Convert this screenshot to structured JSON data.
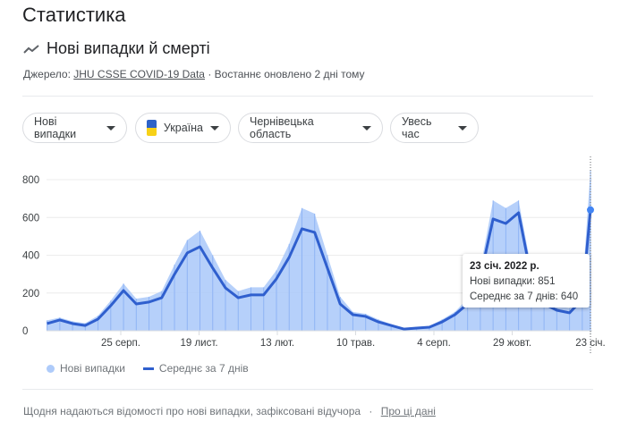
{
  "page_title": "Статистика",
  "section": {
    "title": "Нові випадки й смерті",
    "icon": "trending-icon"
  },
  "source": {
    "label": "Джерело:",
    "link": "JHU CSSE COVID-19 Data",
    "updated": "· Востаннє оновлено 2 дні тому"
  },
  "filters": [
    {
      "label": "Нові випадки"
    },
    {
      "label": "Україна",
      "flag": "ukraine-flag"
    },
    {
      "label": "Чернівецька область"
    },
    {
      "label": "Увесь час"
    }
  ],
  "tooltip": {
    "date": "23 січ. 2022 р.",
    "cases": "Нові випадки: 851",
    "avg": "Середнє за 7 днів: 640"
  },
  "legend": {
    "cases": "Нові випадки",
    "avg": "Середнє за 7 днів"
  },
  "footer": {
    "text": "Щодня надаються відомості про нові випадки, зафіксовані відучора",
    "sep": "·",
    "link": "Про ці дані"
  },
  "colors": {
    "bars": "#aecbfa",
    "line": "#2f5fce",
    "dot": "#4285f4"
  },
  "chart_data": {
    "type": "area+line",
    "ylim": [
      0,
      850
    ],
    "yticks": [
      "0",
      "200",
      "400",
      "600",
      "800"
    ],
    "xticks": [
      {
        "label": "25 серп.",
        "date": "2020-08-25"
      },
      {
        "label": "19 лист.",
        "date": "2020-11-19"
      },
      {
        "label": "13 лют.",
        "date": "2021-02-13"
      },
      {
        "label": "10 трав.",
        "date": "2021-05-10"
      },
      {
        "label": "4 серп.",
        "date": "2021-08-04"
      },
      {
        "label": "29 жовт.",
        "date": "2021-10-29"
      },
      {
        "label": "23 січ.",
        "date": "2022-01-23"
      }
    ],
    "x": [
      "2020-06-05",
      "2020-06-19",
      "2020-07-03",
      "2020-07-17",
      "2020-07-31",
      "2020-08-14",
      "2020-08-28",
      "2020-09-11",
      "2020-09-25",
      "2020-10-09",
      "2020-10-23",
      "2020-11-06",
      "2020-11-20",
      "2020-12-04",
      "2020-12-18",
      "2021-01-01",
      "2021-01-15",
      "2021-01-29",
      "2021-02-12",
      "2021-02-26",
      "2021-03-12",
      "2021-03-26",
      "2021-04-09",
      "2021-04-23",
      "2021-05-07",
      "2021-05-21",
      "2021-06-04",
      "2021-06-18",
      "2021-07-02",
      "2021-07-16",
      "2021-07-30",
      "2021-08-13",
      "2021-08-27",
      "2021-09-10",
      "2021-09-24",
      "2021-10-08",
      "2021-10-22",
      "2021-11-05",
      "2021-11-19",
      "2021-12-03",
      "2021-12-17",
      "2021-12-31",
      "2022-01-14",
      "2022-01-23"
    ],
    "series": [
      {
        "name": "Нові випадки",
        "values": [
          55,
          70,
          50,
          40,
          80,
          160,
          250,
          170,
          180,
          210,
          350,
          480,
          530,
          400,
          270,
          210,
          230,
          230,
          320,
          460,
          650,
          620,
          400,
          180,
          100,
          90,
          60,
          35,
          15,
          20,
          25,
          60,
          100,
          170,
          330,
          690,
          650,
          690,
          330,
          170,
          130,
          120,
          220,
          851
        ]
      },
      {
        "name": "Середнє за 7 днів",
        "values": [
          38,
          57,
          38,
          28,
          62,
          133,
          213,
          142,
          152,
          175,
          299,
          412,
          445,
          332,
          227,
          175,
          190,
          190,
          275,
          389,
          540,
          521,
          332,
          142,
          85,
          76,
          47,
          28,
          9,
          14,
          19,
          47,
          85,
          142,
          284,
          592,
          568,
          625,
          284,
          142,
          109,
          95,
          166,
          640
        ]
      }
    ]
  }
}
